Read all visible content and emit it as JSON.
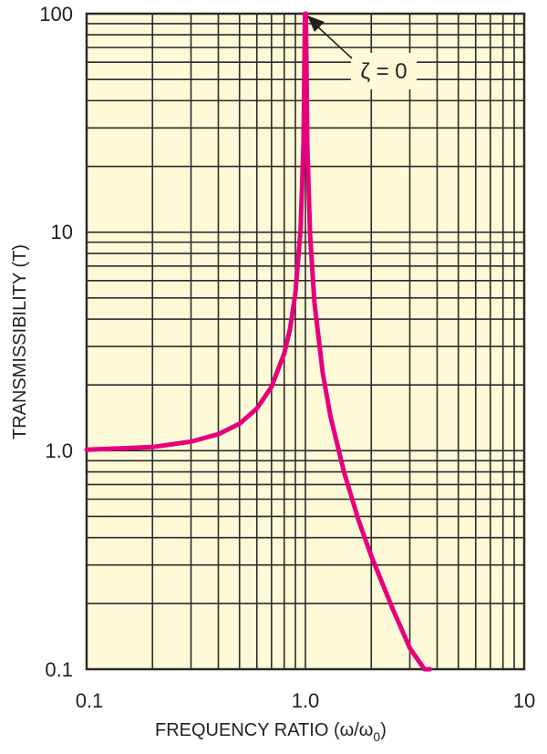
{
  "chart_data": {
    "type": "line",
    "title": "",
    "xlabel": "FREQUENCY RATIO (ω/ω0)",
    "xlabel_main": "FREQUENCY RATIO (",
    "xlabel_omega": "ω/ω",
    "xlabel_sub": "0",
    "xlabel_close": ")",
    "ylabel": "TRANSMISSIBILITY (T)",
    "xscale": "log",
    "yscale": "log",
    "xlim": [
      0.1,
      10
    ],
    "ylim": [
      0.1,
      100
    ],
    "grid": true,
    "x_ticks": [
      "0.1",
      "1.0",
      "10"
    ],
    "y_ticks": [
      "0.1",
      "1.0",
      "10",
      "100"
    ],
    "annotation": {
      "text": "ζ = 0",
      "points_to": [
        1.0,
        100
      ]
    },
    "series": [
      {
        "name": "ζ = 0",
        "color": "#e6007e",
        "x": [
          0.1,
          0.2,
          0.3,
          0.4,
          0.5,
          0.6,
          0.7,
          0.8,
          0.85,
          0.9,
          0.95,
          0.98,
          0.995,
          1.0,
          1.005,
          1.02,
          1.05,
          1.1,
          1.2,
          1.3,
          1.5,
          1.75,
          2.0,
          2.5,
          3.0,
          3.5,
          3.7
        ],
        "values": [
          1.01,
          1.04,
          1.1,
          1.19,
          1.33,
          1.56,
          1.96,
          2.78,
          3.6,
          5.26,
          10.26,
          25.25,
          100,
          100,
          100,
          24.75,
          9.76,
          4.76,
          2.27,
          1.45,
          0.8,
          0.48,
          0.33,
          0.19,
          0.125,
          0.089,
          0.079
        ]
      }
    ]
  },
  "colors": {
    "plot_background": "#fef9d7",
    "grid": "#2b2b2b",
    "curve": "#e6007e"
  }
}
